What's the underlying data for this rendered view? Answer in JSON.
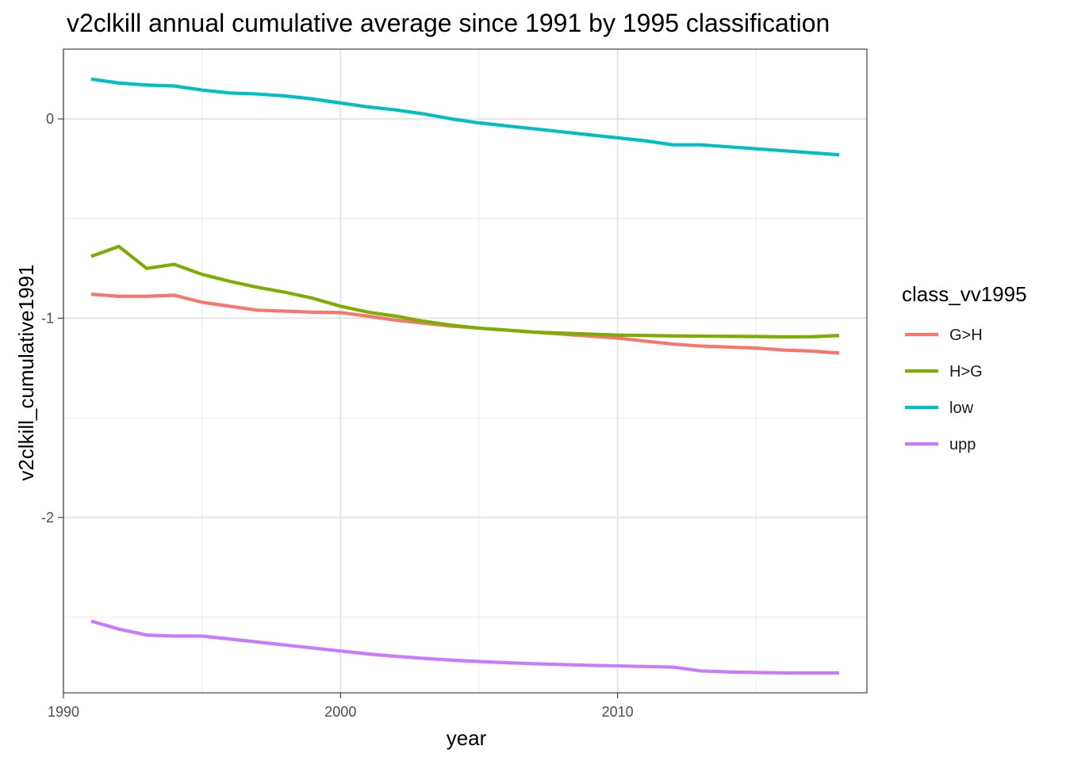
{
  "chart_data": {
    "type": "line",
    "title": "v2clkill annual cumulative average since 1991 by 1995 classification",
    "xlabel": "year",
    "ylabel": "v2clkill_cumulative1991",
    "xlim": [
      1990,
      2019
    ],
    "ylim": [
      -2.88,
      0.35
    ],
    "x_ticks": [
      1990,
      2000,
      2010
    ],
    "y_ticks": [
      0,
      -1,
      -2
    ],
    "y_tick_labels": [
      "0",
      "-1",
      "-2"
    ],
    "grid": true,
    "legend": {
      "title": "class_vv1995",
      "position": "right"
    },
    "x": [
      1991,
      1992,
      1993,
      1994,
      1995,
      1996,
      1997,
      1998,
      1999,
      2000,
      2001,
      2002,
      2003,
      2004,
      2005,
      2006,
      2007,
      2008,
      2009,
      2010,
      2011,
      2012,
      2013,
      2014,
      2015,
      2016,
      2017,
      2018
    ],
    "series": [
      {
        "name": "G>H",
        "color": "#f8766d",
        "values": [
          -0.88,
          -0.89,
          -0.89,
          -0.885,
          -0.92,
          -0.94,
          -0.96,
          -0.965,
          -0.97,
          -0.972,
          -0.99,
          -1.01,
          -1.025,
          -1.04,
          -1.05,
          -1.06,
          -1.07,
          -1.08,
          -1.09,
          -1.1,
          -1.115,
          -1.13,
          -1.14,
          -1.145,
          -1.15,
          -1.16,
          -1.165,
          -1.175
        ]
      },
      {
        "name": "H>G",
        "color": "#7cae00",
        "values": [
          -0.69,
          -0.64,
          -0.75,
          -0.73,
          -0.78,
          -0.815,
          -0.845,
          -0.87,
          -0.9,
          -0.94,
          -0.97,
          -0.99,
          -1.015,
          -1.035,
          -1.05,
          -1.06,
          -1.07,
          -1.075,
          -1.08,
          -1.085,
          -1.087,
          -1.089,
          -1.09,
          -1.091,
          -1.092,
          -1.094,
          -1.093,
          -1.087
        ]
      },
      {
        "name": "low",
        "color": "#00bfc4",
        "values": [
          0.2,
          0.18,
          0.17,
          0.165,
          0.145,
          0.13,
          0.125,
          0.115,
          0.1,
          0.08,
          0.06,
          0.045,
          0.025,
          0.0,
          -0.02,
          -0.035,
          -0.05,
          -0.065,
          -0.08,
          -0.095,
          -0.11,
          -0.13,
          -0.13,
          -0.14,
          -0.15,
          -0.16,
          -0.17,
          -0.18
        ]
      },
      {
        "name": "upp",
        "color": "#c77cff",
        "values": [
          -2.52,
          -2.56,
          -2.59,
          -2.595,
          -2.595,
          -2.61,
          -2.625,
          -2.64,
          -2.655,
          -2.67,
          -2.685,
          -2.697,
          -2.707,
          -2.716,
          -2.723,
          -2.729,
          -2.734,
          -2.738,
          -2.742,
          -2.745,
          -2.748,
          -2.751,
          -2.77,
          -2.775,
          -2.778,
          -2.78,
          -2.78,
          -2.78
        ]
      }
    ]
  }
}
